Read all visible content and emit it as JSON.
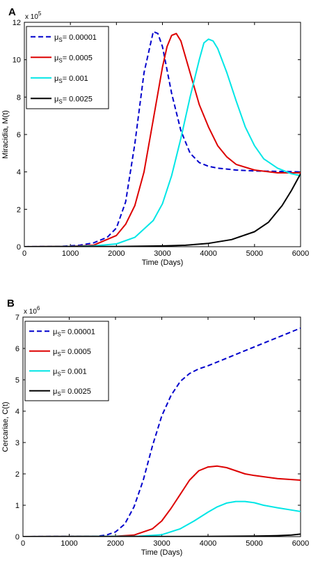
{
  "chart_data": [
    {
      "panel": "A",
      "type": "line",
      "xlabel": "Time (Days)",
      "ylabel": "Miracidia, M(t)",
      "y_multiplier": "x 10",
      "y_exponent": "5",
      "xlim": [
        0,
        6000
      ],
      "ylim": [
        0,
        12
      ],
      "xticks": [
        "0",
        "1000",
        "2000",
        "3000",
        "4000",
        "5000",
        "6000"
      ],
      "yticks": [
        "0",
        "2",
        "4",
        "6",
        "8",
        "10",
        "12"
      ],
      "grid": false,
      "legend_placement": "top-left",
      "series": [
        {
          "name": "μ",
          "sub": "S",
          "value": "= 0.00001",
          "color": "#0000cc",
          "dash": true,
          "x": [
            0,
            800,
            1200,
            1500,
            1800,
            2000,
            2200,
            2400,
            2600,
            2800,
            2900,
            3000,
            3200,
            3400,
            3600,
            3800,
            4000,
            4200,
            4400,
            4600,
            5000,
            5500,
            6000
          ],
          "y": [
            0,
            0.02,
            0.08,
            0.2,
            0.5,
            1.0,
            2.4,
            5.5,
            9.3,
            11.5,
            11.4,
            10.7,
            8.2,
            6.2,
            5.0,
            4.5,
            4.3,
            4.2,
            4.15,
            4.1,
            4.05,
            4.03,
            4.0
          ]
        },
        {
          "name": "μ",
          "sub": "S",
          "value": "= 0.0005",
          "color": "#dd0000",
          "dash": false,
          "x": [
            0,
            1000,
            1500,
            2000,
            2200,
            2400,
            2600,
            2800,
            3000,
            3100,
            3200,
            3300,
            3400,
            3600,
            3800,
            4000,
            4200,
            4400,
            4600,
            5000,
            5500,
            6000
          ],
          "y": [
            0,
            0.02,
            0.08,
            0.6,
            1.2,
            2.2,
            4.0,
            6.8,
            9.6,
            10.7,
            11.3,
            11.4,
            11.0,
            9.3,
            7.6,
            6.4,
            5.4,
            4.8,
            4.4,
            4.1,
            3.95,
            3.95
          ]
        },
        {
          "name": "μ",
          "sub": "S",
          "value": "= 0.001",
          "color": "#00e6e6",
          "dash": false,
          "x": [
            0,
            1000,
            1500,
            2000,
            2400,
            2800,
            3000,
            3200,
            3400,
            3600,
            3800,
            3900,
            4000,
            4100,
            4200,
            4400,
            4600,
            4800,
            5000,
            5200,
            5500,
            5800,
            6000
          ],
          "y": [
            0,
            0.01,
            0.04,
            0.15,
            0.5,
            1.4,
            2.3,
            3.8,
            5.8,
            8.0,
            10.0,
            10.9,
            11.1,
            11.0,
            10.6,
            9.3,
            7.8,
            6.4,
            5.4,
            4.7,
            4.2,
            3.9,
            3.8
          ]
        },
        {
          "name": "μ",
          "sub": "S",
          "value": "= 0.0025",
          "color": "#000000",
          "dash": false,
          "x": [
            0,
            2000,
            3000,
            3500,
            4000,
            4500,
            5000,
            5300,
            5600,
            5800,
            6000
          ],
          "y": [
            0,
            0.01,
            0.04,
            0.08,
            0.18,
            0.38,
            0.8,
            1.3,
            2.2,
            3.0,
            3.9
          ]
        }
      ]
    },
    {
      "panel": "B",
      "type": "line",
      "xlabel": "Time (Days)",
      "ylabel": "Cercariae, C(t)",
      "y_multiplier": "x 10",
      "y_exponent": "6",
      "xlim": [
        0,
        6000
      ],
      "ylim": [
        0,
        7
      ],
      "xticks": [
        "0",
        "1000",
        "2000",
        "3000",
        "4000",
        "5000",
        "6000"
      ],
      "yticks": [
        "0",
        "1",
        "2",
        "3",
        "4",
        "5",
        "6",
        "7"
      ],
      "grid": false,
      "legend_placement": "top-left",
      "series": [
        {
          "name": "μ",
          "sub": "S",
          "value": "= 0.00001",
          "color": "#0000cc",
          "dash": true,
          "x": [
            0,
            1600,
            1800,
            2000,
            2200,
            2400,
            2600,
            2800,
            3000,
            3200,
            3400,
            3600,
            3800,
            4000,
            4500,
            5000,
            5500,
            6000
          ],
          "y": [
            0,
            0.01,
            0.05,
            0.15,
            0.4,
            0.95,
            1.8,
            2.9,
            3.85,
            4.5,
            4.95,
            5.2,
            5.35,
            5.45,
            5.75,
            6.05,
            6.35,
            6.65
          ]
        },
        {
          "name": "μ",
          "sub": "S",
          "value": "= 0.0005",
          "color": "#dd0000",
          "dash": false,
          "x": [
            0,
            2000,
            2400,
            2800,
            3000,
            3200,
            3400,
            3600,
            3800,
            4000,
            4200,
            4400,
            4600,
            4800,
            5000,
            5500,
            6000
          ],
          "y": [
            0,
            0.01,
            0.05,
            0.25,
            0.5,
            0.9,
            1.35,
            1.8,
            2.1,
            2.22,
            2.25,
            2.2,
            2.1,
            2.0,
            1.95,
            1.85,
            1.8
          ]
        },
        {
          "name": "μ",
          "sub": "S",
          "value": "= 0.001",
          "color": "#00e6e6",
          "dash": false,
          "x": [
            0,
            2500,
            3000,
            3400,
            3700,
            4000,
            4200,
            4400,
            4600,
            4800,
            5000,
            5200,
            5500,
            5800,
            6000
          ],
          "y": [
            0,
            0.01,
            0.06,
            0.25,
            0.5,
            0.78,
            0.95,
            1.07,
            1.12,
            1.12,
            1.08,
            1.0,
            0.92,
            0.85,
            0.8
          ]
        },
        {
          "name": "μ",
          "sub": "S",
          "value": "= 0.0025",
          "color": "#000000",
          "dash": false,
          "x": [
            0,
            4000,
            5000,
            5500,
            5800,
            6000
          ],
          "y": [
            0,
            0.005,
            0.015,
            0.03,
            0.05,
            0.08
          ]
        }
      ]
    }
  ]
}
